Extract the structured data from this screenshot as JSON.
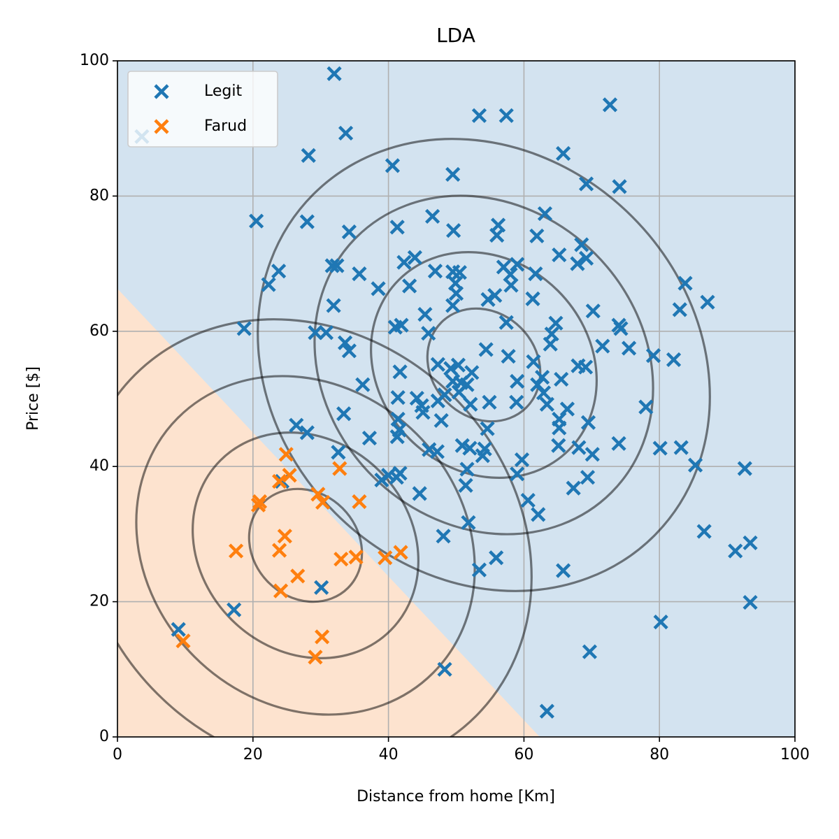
{
  "chart_data": {
    "type": "scatter",
    "title": "LDA",
    "xlabel": "Distance from home [Km]",
    "ylabel": "Price [$]",
    "xlim": [
      0,
      100
    ],
    "ylim": [
      0,
      100
    ],
    "xticks": [
      0,
      20,
      40,
      60,
      80,
      100
    ],
    "yticks": [
      0,
      20,
      40,
      60,
      80,
      100
    ],
    "grid": true,
    "legend": "upper left",
    "series": [
      {
        "name": "Legit",
        "color": "#1f77b4",
        "x": [
          32.0,
          3.6,
          33.7,
          28.2,
          53.4,
          57.4,
          72.7,
          40.6,
          49.5,
          65.8,
          69.2,
          74.1,
          20.5,
          28.0,
          34.2,
          41.3,
          46.5,
          49.6,
          56.2,
          56.0,
          63.1,
          61.9,
          68.5,
          65.2,
          67.9,
          69.2,
          23.8,
          22.3,
          31.7,
          32.4,
          35.7,
          38.5,
          42.3,
          43.9,
          43.1,
          46.9,
          49.5,
          50.5,
          49.9,
          50.0,
          57.0,
          59.0,
          58.0,
          58.1,
          61.7,
          61.3,
          83.8,
          83.0,
          87.1,
          70.2,
          74.0,
          74.3,
          75.5,
          71.6,
          79.1,
          82.1,
          18.7,
          29.2,
          30.8,
          31.9,
          33.6,
          34.2,
          36.2,
          41.0,
          45.4,
          45.9,
          49.5,
          54.7,
          55.7,
          57.4,
          57.7,
          54.4,
          64.7,
          64.1,
          63.9,
          61.4,
          59.0,
          62.7,
          62.0,
          62.9,
          63.4,
          65.5,
          68.0,
          69.1,
          66.4,
          65.2,
          65.2,
          65.1,
          69.5,
          68.1,
          70.1,
          69.4,
          67.3,
          74.0,
          78.0,
          80.1,
          83.2,
          85.3,
          92.6,
          86.6,
          91.2,
          93.4,
          93.4,
          80.2,
          69.7,
          63.4,
          48.3,
          65.8,
          55.9,
          53.4,
          51.8,
          48.1,
          44.6,
          39.0,
          40.0,
          41.2,
          41.7,
          51.4,
          51.6,
          53.9,
          50.9,
          52.0,
          54.6,
          54.2,
          59.0,
          60.6,
          62.1,
          59.7,
          58.9,
          54.9,
          52.1,
          50.4,
          50.7,
          51.6,
          52.3,
          50.3,
          49.2,
          47.3,
          49.5,
          48.3,
          47.3,
          44.9,
          45.1,
          44.2,
          41.4,
          41.4,
          41.6,
          41.3,
          47.8,
          46.0,
          47.2,
          41.7,
          41.9,
          37.2,
          33.4,
          32.6,
          26.4,
          28.0,
          24.3,
          17.2,
          9.0,
          30.1
        ],
        "y": [
          98.1,
          88.8,
          89.3,
          86.0,
          91.9,
          91.9,
          93.5,
          84.5,
          83.2,
          86.3,
          81.8,
          81.4,
          76.3,
          76.2,
          74.7,
          75.4,
          77.0,
          74.9,
          75.7,
          74.2,
          77.4,
          74.1,
          72.8,
          71.3,
          70.0,
          70.8,
          68.9,
          66.9,
          69.7,
          69.7,
          68.5,
          66.3,
          70.2,
          70.9,
          66.7,
          68.9,
          68.8,
          68.7,
          67.1,
          65.6,
          69.5,
          69.9,
          68.4,
          66.8,
          68.5,
          64.8,
          67.1,
          63.2,
          64.3,
          63.0,
          60.9,
          60.4,
          57.5,
          57.8,
          56.4,
          55.8,
          60.4,
          59.8,
          59.8,
          63.8,
          58.3,
          57.1,
          52.1,
          60.6,
          62.5,
          59.7,
          63.8,
          64.7,
          65.3,
          61.3,
          56.3,
          57.3,
          61.2,
          59.6,
          58.1,
          55.5,
          52.6,
          53.2,
          52.1,
          50.9,
          49.2,
          52.9,
          54.9,
          54.7,
          48.5,
          47.0,
          45.7,
          43.1,
          46.5,
          42.8,
          41.8,
          38.4,
          36.8,
          43.4,
          48.8,
          42.7,
          42.8,
          40.2,
          39.7,
          30.4,
          27.5,
          28.7,
          19.9,
          17.0,
          12.6,
          3.8,
          10.0,
          24.6,
          26.5,
          24.7,
          31.7,
          29.7,
          36.0,
          38.0,
          38.7,
          38.4,
          39.0,
          37.2,
          39.6,
          41.6,
          43.1,
          42.7,
          45.6,
          42.6,
          38.9,
          35.0,
          32.9,
          41.0,
          49.5,
          49.5,
          49.2,
          51.0,
          52.4,
          52.1,
          53.9,
          55.0,
          54.5,
          55.1,
          52.6,
          50.6,
          49.7,
          49.0,
          48.0,
          50.1,
          50.2,
          47.0,
          45.4,
          44.4,
          46.8,
          42.5,
          42.2,
          54.0,
          60.9,
          44.2,
          47.8,
          42.1,
          46.1,
          45.0,
          37.8,
          18.8,
          15.9,
          22.1
        ]
      },
      {
        "name": "Farud",
        "color": "#ff7f0e",
        "x": [
          24.9,
          32.8,
          23.9,
          25.4,
          21.0,
          20.8,
          29.6,
          30.3,
          35.7,
          17.5,
          24.7,
          23.9,
          26.6,
          24.1,
          33.0,
          35.2,
          39.5,
          41.8,
          30.2,
          29.2,
          9.7
        ],
        "y": [
          41.8,
          39.7,
          37.8,
          38.7,
          34.8,
          34.3,
          35.9,
          34.7,
          34.8,
          27.5,
          29.7,
          27.6,
          23.8,
          21.6,
          26.3,
          26.6,
          26.5,
          27.3,
          14.8,
          11.8,
          14.2
        ]
      }
    ]
  }
}
